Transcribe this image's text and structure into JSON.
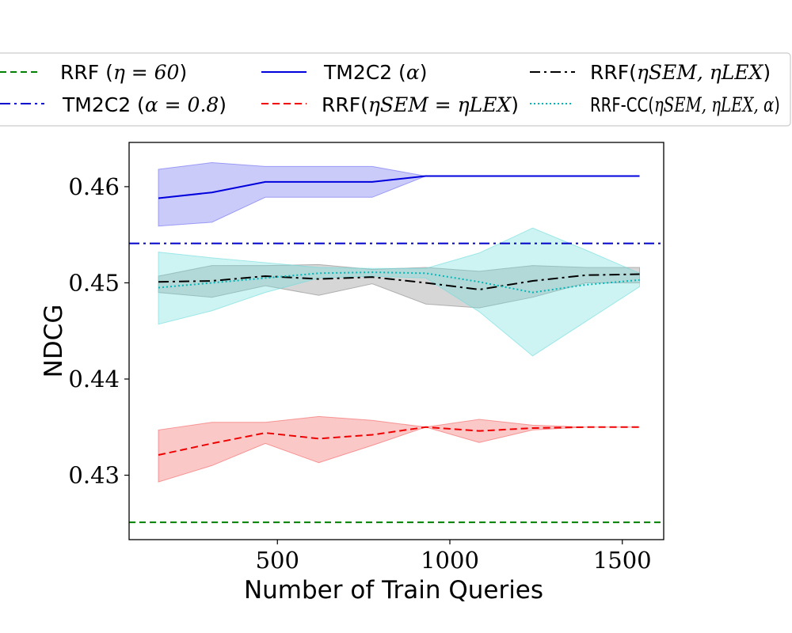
{
  "chart_data": {
    "type": "line",
    "title": "",
    "xlabel": "Number of Train Queries",
    "ylabel": "NDCG",
    "xlim": [
      70,
      1620
    ],
    "ylim": [
      0.4233,
      0.4646
    ],
    "xticks": [
      500,
      1000,
      1500
    ],
    "xtick_labels": [
      "500",
      "1000",
      "1500"
    ],
    "yticks": [
      0.43,
      0.44,
      0.45,
      0.46
    ],
    "ytick_labels": [
      "0.43",
      "0.44",
      "0.45",
      "0.46"
    ],
    "grid": false,
    "legend_position": "top",
    "series": [
      {
        "name": "RRF (η = 60)",
        "kind": "hline",
        "y": 0.4251,
        "color": "#008000",
        "dash": "8,5"
      },
      {
        "name": "TM2C2 (α = 0.8)",
        "kind": "hline",
        "y": 0.4541,
        "color": "#0000cc",
        "dash": "13,5,3,5"
      },
      {
        "name": "TM2C2 (α)",
        "kind": "line",
        "color": "#0000dd",
        "dash": "",
        "x": [
          155,
          310,
          465,
          620,
          775,
          930,
          1085,
          1240,
          1550
        ],
        "y": [
          0.4588,
          0.4594,
          0.4605,
          0.4605,
          0.4605,
          0.4611,
          0.4611,
          0.4611,
          0.4611
        ],
        "band_lower": [
          0.4559,
          0.4563,
          0.4589,
          0.4589,
          0.4589,
          0.4611,
          0.4611,
          0.4611,
          0.4611
        ],
        "band_upper": [
          0.4618,
          0.4625,
          0.4621,
          0.4621,
          0.4621,
          0.4611,
          0.4611,
          0.4611,
          0.4611
        ],
        "band_color": "#6a6af2"
      },
      {
        "name": "RRF(ηSEM = ηLEX)",
        "kind": "line",
        "color": "#ee0000",
        "dash": "9,5",
        "x": [
          155,
          310,
          465,
          620,
          775,
          930,
          1085,
          1240,
          1395,
          1550
        ],
        "y": [
          0.4321,
          0.4333,
          0.4344,
          0.4338,
          0.4342,
          0.435,
          0.4346,
          0.4349,
          0.435,
          0.435
        ],
        "band_lower": [
          0.4293,
          0.431,
          0.4333,
          0.4313,
          0.4331,
          0.435,
          0.4334,
          0.4347,
          0.435,
          0.435
        ],
        "band_upper": [
          0.4347,
          0.4355,
          0.4355,
          0.4361,
          0.4357,
          0.435,
          0.4358,
          0.4352,
          0.435,
          0.435
        ],
        "band_color": "#f46060"
      },
      {
        "name": "RRF(ηSEM, ηLEX)",
        "kind": "line",
        "color": "#000000",
        "dash": "13,5,3,5",
        "x": [
          155,
          310,
          465,
          620,
          775,
          930,
          1085,
          1240,
          1395,
          1550
        ],
        "y": [
          0.4501,
          0.4502,
          0.4507,
          0.4504,
          0.4506,
          0.45,
          0.4493,
          0.4502,
          0.4508,
          0.4509
        ],
        "band_lower": [
          0.449,
          0.4485,
          0.4497,
          0.4487,
          0.4499,
          0.4478,
          0.4474,
          0.4485,
          0.45,
          0.45
        ],
        "band_upper": [
          0.4507,
          0.4518,
          0.4518,
          0.4519,
          0.4514,
          0.4516,
          0.4512,
          0.4518,
          0.4516,
          0.4516
        ],
        "band_color": "#8a8a8a"
      },
      {
        "name": "RRF-CC(ηSEM, ηLEX, α)",
        "kind": "line",
        "color": "#00b8b8",
        "dash": "2,3",
        "x": [
          155,
          310,
          465,
          620,
          775,
          930,
          1085,
          1240,
          1395,
          1550
        ],
        "y": [
          0.4495,
          0.45,
          0.4505,
          0.451,
          0.4511,
          0.451,
          0.4501,
          0.449,
          0.4498,
          0.4503
        ],
        "band_lower": [
          0.4457,
          0.4471,
          0.449,
          0.4505,
          0.4507,
          0.4505,
          0.447,
          0.4424,
          0.446,
          0.4496
        ],
        "band_upper": [
          0.4532,
          0.4526,
          0.4521,
          0.4516,
          0.4515,
          0.4515,
          0.4531,
          0.4557,
          0.4534,
          0.451
        ],
        "band_color": "#6fdcdc"
      }
    ]
  },
  "legend": {
    "items": [
      {
        "series": "RRF (η = 60)",
        "base": "RRF (",
        "math": "η = 60",
        "tail": ")"
      },
      {
        "series": "TM2C2 (α = 0.8)",
        "base": "TM2C2 (",
        "math": "α = 0.8",
        "tail": ")"
      },
      {
        "series": "TM2C2 (α)",
        "base": "TM2C2 (",
        "math": "α",
        "tail": ")"
      },
      {
        "series": "RRF(ηSEM = ηLEX)",
        "base": "RRF(",
        "math": "ηSEM = ηLEX",
        "tail": ")"
      },
      {
        "series": "RRF(ηSEM, ηLEX)",
        "base": "RRF(",
        "math": "ηSEM, ηLEX",
        "tail": ")"
      },
      {
        "series": "RRF-CC(ηSEM, ηLEX, α)",
        "base": "RRF-CC(",
        "math": "ηSEM, ηLEX, α",
        "tail": ")"
      }
    ]
  }
}
